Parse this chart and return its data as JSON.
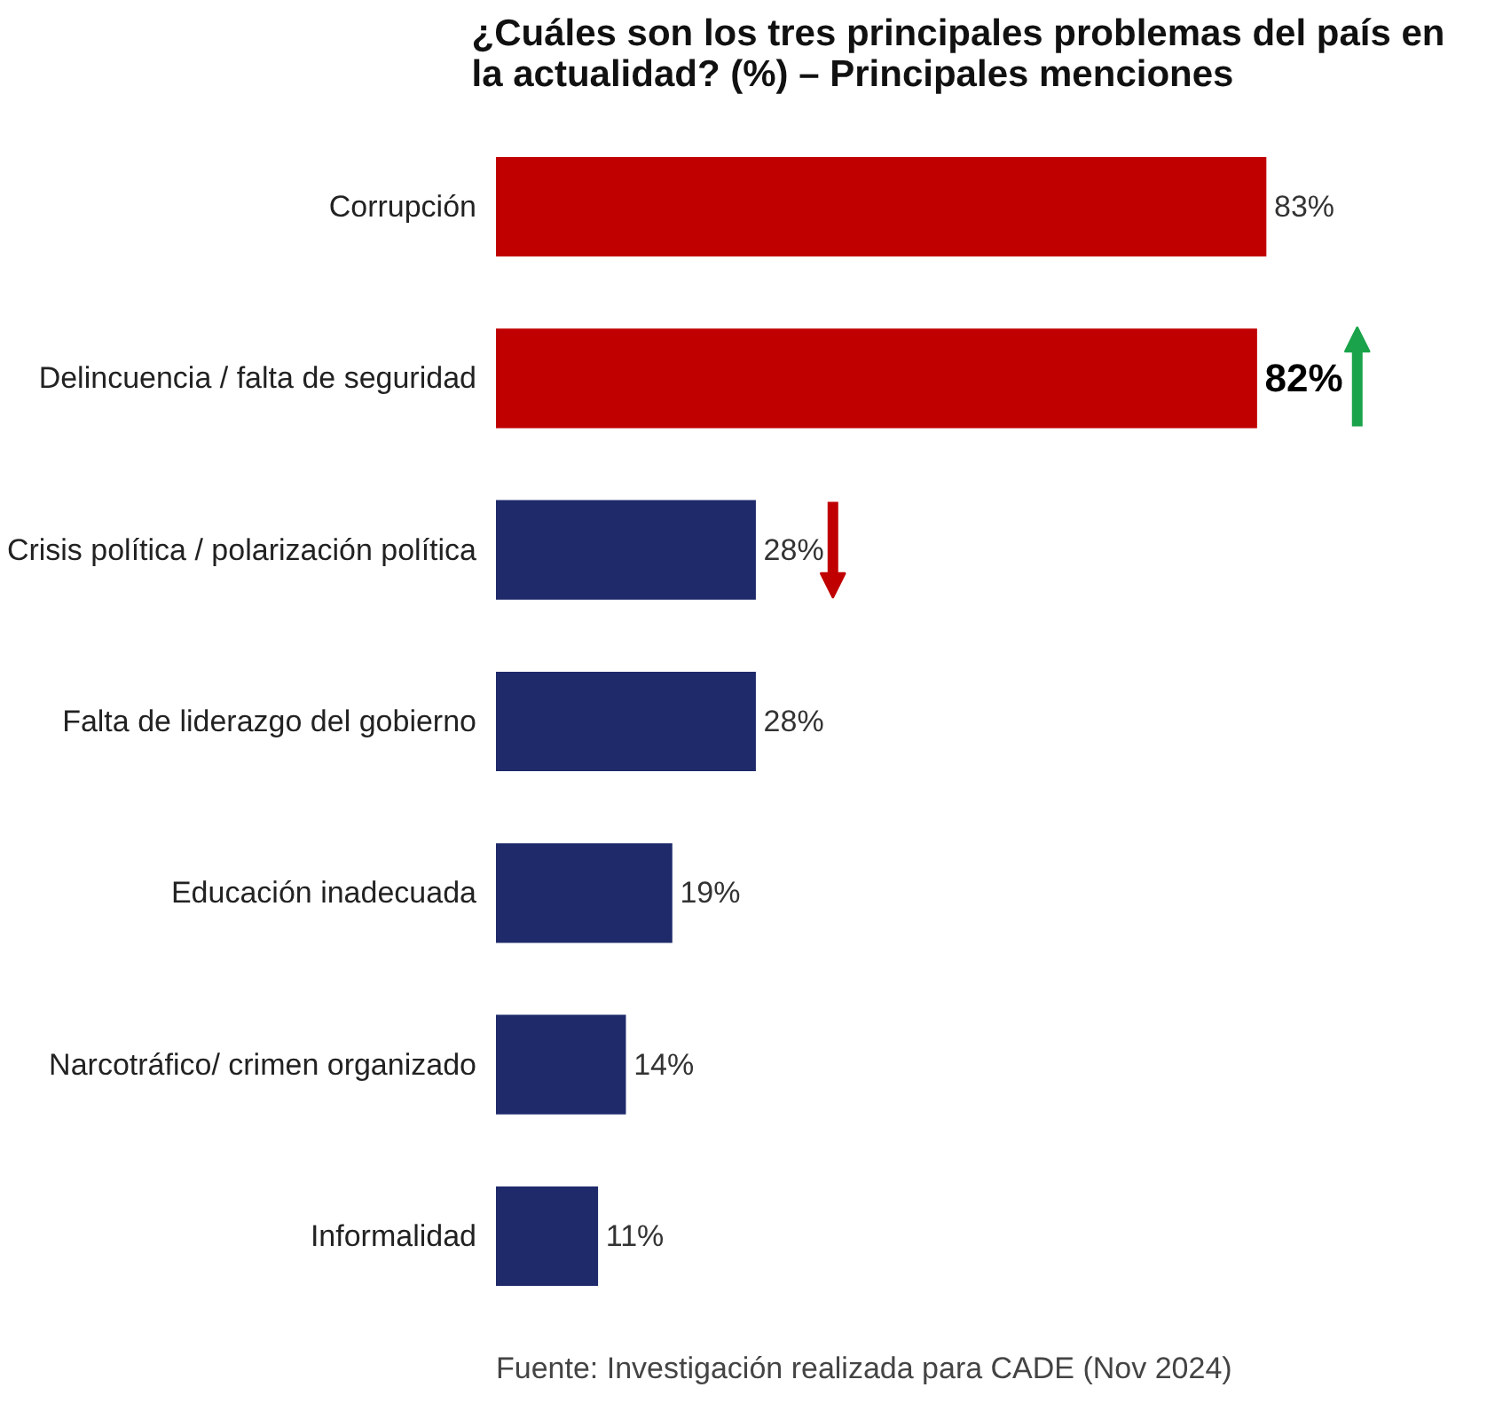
{
  "chart_data": {
    "type": "bar",
    "orientation": "horizontal",
    "title": "¿Cuáles son los tres principales problemas del país en la actualidad? (%)",
    "subtitle": "– Principales menciones",
    "categories": [
      "Corrupción",
      "Delincuencia / falta de seguridad",
      "Crisis política / polarización política",
      "Falta de liderazgo del gobierno",
      "Educación inadecuada",
      "Narcotráfico/ crimen organizado",
      "Informalidad"
    ],
    "values": [
      83,
      82,
      28,
      28,
      19,
      14,
      11
    ],
    "colors": [
      "#c00000",
      "#c00000",
      "#1f2a6b",
      "#1f2a6b",
      "#1f2a6b",
      "#1f2a6b",
      "#1f2a6b"
    ],
    "value_labels": [
      "83%",
      "82%",
      "28%",
      "28%",
      "19%",
      "14%",
      "11%"
    ],
    "grid": false,
    "annotations": [
      "Fuente: Investigación realizada para CADE (Nov 2024)"
    ]
  }
}
